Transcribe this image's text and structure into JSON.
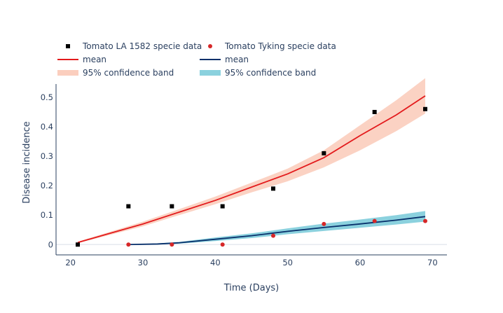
{
  "chart_data": {
    "type": "line",
    "xlabel": "Time (Days)",
    "ylabel": "Disease incidence",
    "xlim": [
      18,
      72
    ],
    "ylim": [
      -0.035,
      0.545
    ],
    "xticks": [
      20,
      30,
      40,
      50,
      60,
      70
    ],
    "yticks": [
      0,
      0.1,
      0.2,
      0.3,
      0.4,
      0.5
    ],
    "xtick_labels": [
      "20",
      "30",
      "40",
      "50",
      "60",
      "70"
    ],
    "ytick_labels": [
      "0",
      "0.1",
      "0.2",
      "0.3",
      "0.4",
      "0.5"
    ],
    "grid": false,
    "legend_position": "top-left",
    "series": [
      {
        "name": "Tomato LA 1582 specie data",
        "kind": "scatter",
        "marker": "square",
        "color": "#000000",
        "x": [
          21,
          28,
          34,
          41,
          48,
          55,
          62,
          69
        ],
        "y": [
          0.0,
          0.13,
          0.13,
          0.13,
          0.19,
          0.31,
          0.45,
          0.46
        ]
      },
      {
        "name": "Tomato Tyking specie data",
        "kind": "scatter",
        "marker": "circle",
        "color": "#d62728",
        "x": [
          28,
          34,
          41,
          48,
          55,
          62,
          69
        ],
        "y": [
          0.0,
          0.0,
          0.0,
          0.03,
          0.07,
          0.08,
          0.08
        ]
      },
      {
        "name": "mean",
        "kind": "line",
        "color": "#e31a1c",
        "x": [
          21,
          25,
          30,
          35,
          40,
          45,
          50,
          55,
          58,
          60,
          65,
          69
        ],
        "y": [
          0.007,
          0.035,
          0.07,
          0.11,
          0.15,
          0.195,
          0.24,
          0.295,
          0.34,
          0.37,
          0.44,
          0.505
        ]
      },
      {
        "name": "95% confidence band",
        "kind": "band",
        "color": "#f9b49b",
        "x": [
          21,
          25,
          30,
          35,
          40,
          45,
          50,
          55,
          60,
          65,
          69
        ],
        "lower": [
          0.005,
          0.03,
          0.062,
          0.1,
          0.137,
          0.177,
          0.215,
          0.262,
          0.32,
          0.385,
          0.445
        ],
        "upper": [
          0.01,
          0.04,
          0.078,
          0.12,
          0.163,
          0.21,
          0.258,
          0.32,
          0.405,
          0.49,
          0.565
        ]
      },
      {
        "name": "mean",
        "kind": "line",
        "color": "#08306b",
        "x": [
          28,
          32,
          35,
          40,
          45,
          50,
          55,
          60,
          65,
          69
        ],
        "y": [
          0.0,
          0.002,
          0.006,
          0.018,
          0.03,
          0.045,
          0.058,
          0.07,
          0.083,
          0.095
        ]
      },
      {
        "name": "95% confidence band",
        "kind": "band",
        "color": "#4db8cc",
        "x": [
          28,
          32,
          35,
          40,
          45,
          50,
          55,
          60,
          65,
          69
        ],
        "lower": [
          0.0,
          0.0,
          0.003,
          0.012,
          0.022,
          0.035,
          0.046,
          0.057,
          0.068,
          0.078
        ],
        "upper": [
          0.0,
          0.004,
          0.009,
          0.024,
          0.038,
          0.055,
          0.071,
          0.085,
          0.1,
          0.114
        ]
      }
    ]
  }
}
